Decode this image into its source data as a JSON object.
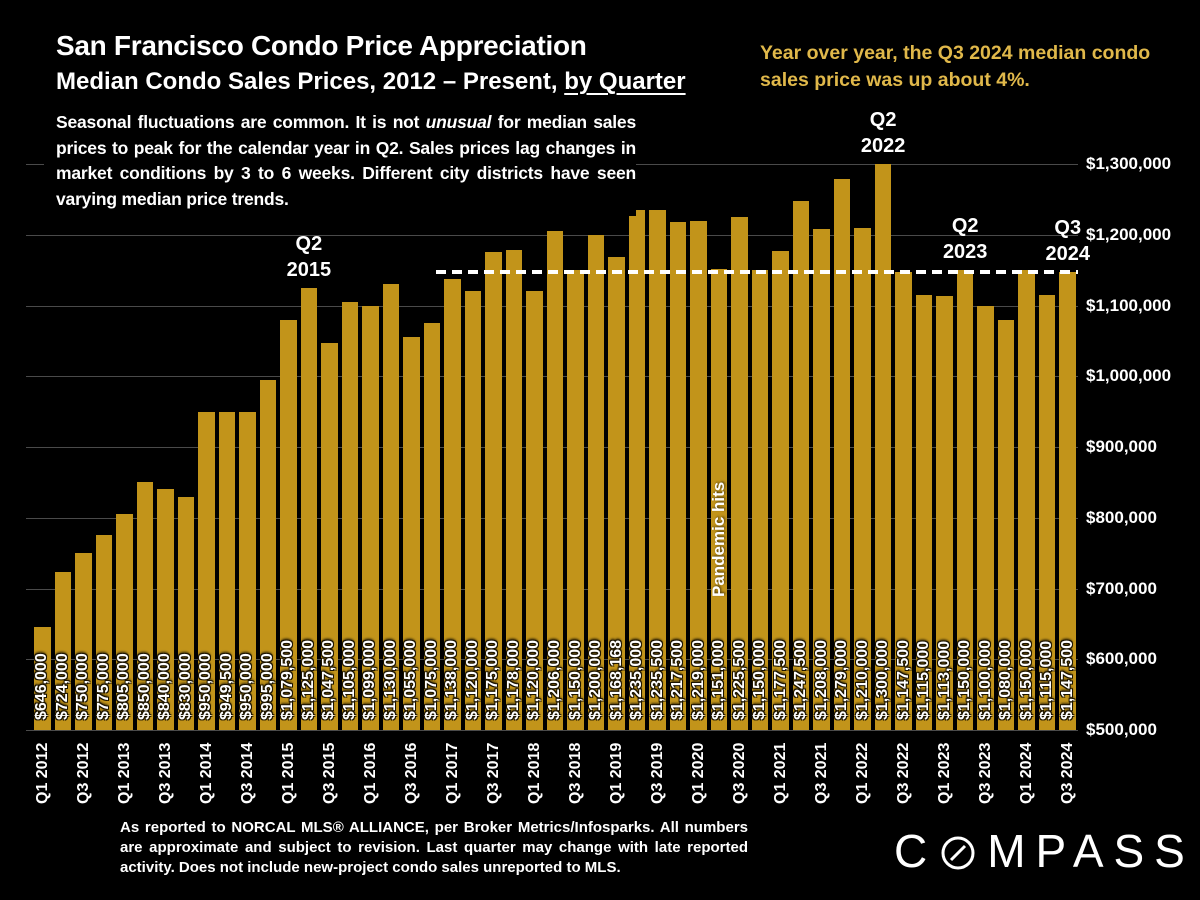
{
  "header": {
    "title": "San Francisco Condo Price Appreciation",
    "subtitle_main": "Median Condo Sales Prices, 2012 – Present, ",
    "subtitle_underline": "by Quarter",
    "para_1": "Seasonal fluctuations are common. It is not ",
    "para_italic": "unusual",
    "para_2": " for median sales prices to peak for the calendar year in Q2. Sales prices lag changes in market conditions by 3 to 6 weeks. Different city districts have seen varying median price trends.",
    "note": "Year over year, the Q3 2024 median condo sales price was up about 4%.",
    "note_color": "#e0b84a"
  },
  "chart_data": {
    "type": "bar",
    "title": "San Francisco Condo Price Appreciation — Median Condo Sales Prices by Quarter",
    "bar_color": "#c2941a",
    "background": "#000000",
    "grid": true,
    "legend": "none",
    "ylim": [
      500000,
      1300000
    ],
    "x_tick_every": 2,
    "categories": [
      "Q1 2012",
      "Q2 2012",
      "Q3 2012",
      "Q4 2012",
      "Q1 2013",
      "Q2 2013",
      "Q3 2013",
      "Q4 2013",
      "Q1 2014",
      "Q2 2014",
      "Q3 2014",
      "Q4 2014",
      "Q1 2015",
      "Q2 2015",
      "Q3 2015",
      "Q4 2015",
      "Q1 2016",
      "Q2 2016",
      "Q3 2016",
      "Q4 2016",
      "Q1 2017",
      "Q2 2017",
      "Q3 2017",
      "Q4 2017",
      "Q1 2018",
      "Q2 2018",
      "Q3 2018",
      "Q4 2018",
      "Q1 2019",
      "Q2 2019",
      "Q3 2019",
      "Q4 2019",
      "Q1 2020",
      "Q2 2020",
      "Q3 2020",
      "Q4 2020",
      "Q1 2021",
      "Q2 2021",
      "Q3 2021",
      "Q4 2021",
      "Q1 2022",
      "Q2 2022",
      "Q3 2022",
      "Q4 2022",
      "Q1 2023",
      "Q2 2023",
      "Q3 2023",
      "Q4 2023",
      "Q1 2024",
      "Q2 2024",
      "Q3 2024"
    ],
    "values": [
      646000,
      724000,
      750000,
      775000,
      805000,
      850000,
      840000,
      830000,
      950000,
      949500,
      950000,
      995000,
      1079500,
      1125000,
      1047500,
      1105000,
      1099000,
      1130000,
      1055000,
      1075000,
      1138000,
      1120000,
      1175000,
      1178000,
      1120000,
      1206000,
      1150000,
      1200000,
      1168168,
      1235000,
      1235500,
      1217500,
      1219000,
      1151000,
      1225500,
      1150000,
      1177500,
      1247500,
      1208000,
      1279000,
      1210000,
      1300000,
      1147500,
      1115000,
      1113000,
      1150000,
      1100000,
      1080000,
      1150000,
      1115000,
      1147500
    ],
    "bar_labels": [
      "$646,000",
      "$724,000",
      "$750,000",
      "$775,000",
      "$805,000",
      "$850,000",
      "$840,000",
      "$830,000",
      "$950,000",
      "$949,500",
      "$950,000",
      "$995,000",
      "$1,079,500",
      "$1,125,000",
      "$1,047,500",
      "$1,105,000",
      "$1,099,000",
      "$1,130,000",
      "$1,055,000",
      "$1,075,000",
      "$1,138,000",
      "$1,120,000",
      "$1,175,000",
      "$1,178,000",
      "$1,120,000",
      "$1,206,000",
      "$1,150,000",
      "$1,200,000",
      "$1,168,168",
      "$1,235,000",
      "$1,235,500",
      "$1,217,500",
      "$1,219,000",
      "$1,151,000",
      "$1,225,500",
      "$1,150,000",
      "$1,177,500",
      "$1,247,500",
      "$1,208,000",
      "$1,279,000",
      "$1,210,000",
      "$1,300,000",
      "$1,147,500",
      "$1,115,000",
      "$1,113,000",
      "$1,150,000",
      "$1,100,000",
      "$1,080,000",
      "$1,150,000",
      "$1,115,000",
      "$1,147,500"
    ],
    "y_ticks": [
      {
        "value": 1300000,
        "label": "$1,300,000"
      },
      {
        "value": 1200000,
        "label": "$1,200,000"
      },
      {
        "value": 1100000,
        "label": "$1,100,000"
      },
      {
        "value": 1000000,
        "label": "$1,000,000"
      },
      {
        "value": 900000,
        "label": "$900,000"
      },
      {
        "value": 800000,
        "label": "$800,000"
      },
      {
        "value": 700000,
        "label": "$700,000"
      },
      {
        "value": 600000,
        "label": "$600,000"
      },
      {
        "value": 500000,
        "label": "$500,000"
      }
    ],
    "reference_line": {
      "value": 1147500,
      "style": "dashed",
      "color": "#ffffff",
      "start_category": "Q1 2017"
    },
    "annotations": [
      {
        "lines": [
          "Q2",
          "2015"
        ],
        "category": "Q2 2015"
      },
      {
        "lines": [
          "Q2",
          "2022"
        ],
        "category": "Q2 2022"
      },
      {
        "lines": [
          "Q2",
          "2023"
        ],
        "category": "Q2 2023"
      },
      {
        "lines": [
          "Q3",
          "2024"
        ],
        "category": "Q3 2024"
      }
    ],
    "bar_annotation": {
      "text": "Pandemic hits",
      "category": "Q2 2020"
    }
  },
  "footer": {
    "disclaimer": "As reported to NORCAL MLS® ALLIANCE, per Broker Metrics/Infosparks. All numbers are approximate and subject to revision. Last quarter may change with late reported activity. Does not include new-project condo sales unreported to MLS.",
    "logo_pre": "C",
    "logo_post": "MPASS"
  }
}
